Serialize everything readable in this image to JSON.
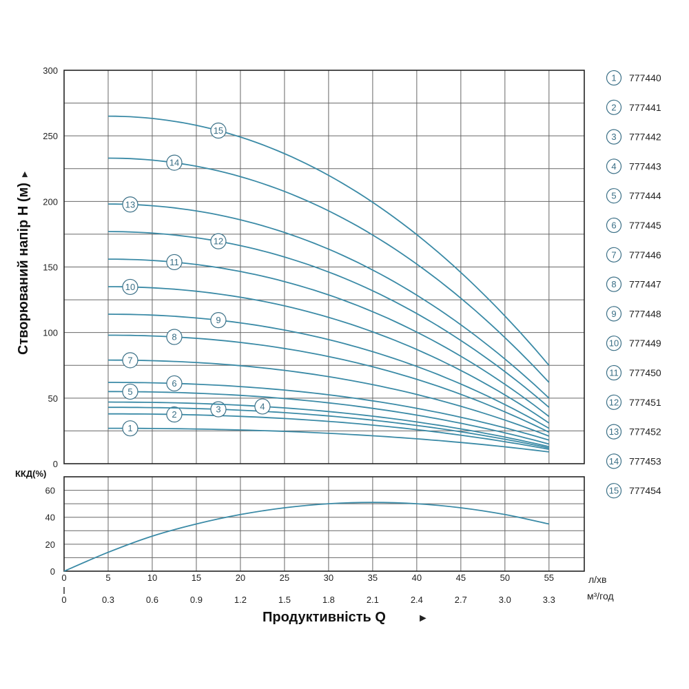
{
  "chart_data": [
    {
      "type": "line",
      "ylabel": "Створюваний напір H (м)",
      "ylim": [
        0,
        300
      ],
      "yticks": [
        0,
        50,
        100,
        150,
        200,
        250,
        300
      ],
      "xlim": [
        0,
        59
      ],
      "series": [
        {
          "name": "777440",
          "marker": "1",
          "x": [
            5,
            55
          ],
          "y": [
            27,
            9
          ],
          "shape": 0.7,
          "marker_x": 7.5
        },
        {
          "name": "777441",
          "marker": "2",
          "x": [
            5,
            55
          ],
          "y": [
            38,
            11
          ],
          "shape": 0.7,
          "marker_x": 12.5
        },
        {
          "name": "777442",
          "marker": "3",
          "x": [
            5,
            55
          ],
          "y": [
            43,
            12
          ],
          "shape": 0.7,
          "marker_x": 17.5
        },
        {
          "name": "777443",
          "marker": "4",
          "x": [
            5,
            55
          ],
          "y": [
            47,
            13
          ],
          "shape": 0.7,
          "marker_x": 22.5
        },
        {
          "name": "777444",
          "marker": "5",
          "x": [
            5,
            55
          ],
          "y": [
            55,
            15
          ],
          "shape": 0.72,
          "marker_x": 7.5
        },
        {
          "name": "777445",
          "marker": "6",
          "x": [
            5,
            55
          ],
          "y": [
            62,
            18
          ],
          "shape": 0.72,
          "marker_x": 12.5
        },
        {
          "name": "777446",
          "marker": "7",
          "x": [
            5,
            55
          ],
          "y": [
            79,
            21
          ],
          "shape": 0.74,
          "marker_x": 7.5
        },
        {
          "name": "777447",
          "marker": "8",
          "x": [
            5,
            55
          ],
          "y": [
            98,
            24
          ],
          "shape": 0.76,
          "marker_x": 12.5
        },
        {
          "name": "777448",
          "marker": "9",
          "x": [
            5,
            55
          ],
          "y": [
            114,
            27
          ],
          "shape": 0.78,
          "marker_x": 17.5
        },
        {
          "name": "777449",
          "marker": "10",
          "x": [
            5,
            55
          ],
          "y": [
            135,
            31
          ],
          "shape": 0.8,
          "marker_x": 7.5
        },
        {
          "name": "777450",
          "marker": "11",
          "x": [
            5,
            55
          ],
          "y": [
            156,
            36
          ],
          "shape": 0.82,
          "marker_x": 12.5
        },
        {
          "name": "777451",
          "marker": "12",
          "x": [
            5,
            55
          ],
          "y": [
            177,
            43
          ],
          "shape": 0.84,
          "marker_x": 17.5
        },
        {
          "name": "777452",
          "marker": "13",
          "x": [
            5,
            55
          ],
          "y": [
            198,
            50
          ],
          "shape": 0.86,
          "marker_x": 7.5
        },
        {
          "name": "777453",
          "marker": "14",
          "x": [
            5,
            55
          ],
          "y": [
            233,
            62
          ],
          "shape": 0.88,
          "marker_x": 12.5
        },
        {
          "name": "777454",
          "marker": "15",
          "x": [
            5,
            55
          ],
          "y": [
            265,
            75
          ],
          "shape": 0.9,
          "marker_x": 17.5
        }
      ]
    },
    {
      "type": "line",
      "ylabel": "ККД(%)",
      "ylim": [
        0,
        70
      ],
      "yticks": [
        0,
        20,
        40,
        60
      ],
      "xlim": [
        0,
        59
      ],
      "series": [
        {
          "x": [
            0,
            5,
            10,
            15,
            20,
            25,
            30,
            35,
            40,
            45,
            50,
            55
          ],
          "y": [
            0,
            14,
            26,
            35,
            42,
            47,
            50,
            51,
            50,
            47,
            42,
            35
          ]
        }
      ]
    }
  ],
  "x_axis": {
    "title": "Продуктивність Q",
    "arrow": "►",
    "primary_unit": "л/хв",
    "secondary_unit": "м³/год",
    "primary_ticks": [
      "0",
      "5",
      "10",
      "15",
      "20",
      "25",
      "30",
      "35",
      "40",
      "45",
      "50",
      "55"
    ],
    "secondary_ticks": [
      "0",
      "0.3",
      "0.6",
      "0.9",
      "1.2",
      "1.5",
      "1.8",
      "2.1",
      "2.4",
      "2.7",
      "3.0",
      "3.3"
    ]
  },
  "y_axis_arrow": "►",
  "colors": {
    "curve": "#3a8aa6",
    "grid": "#666666",
    "frame": "#222222",
    "marker_stroke": "#3a6f86"
  }
}
